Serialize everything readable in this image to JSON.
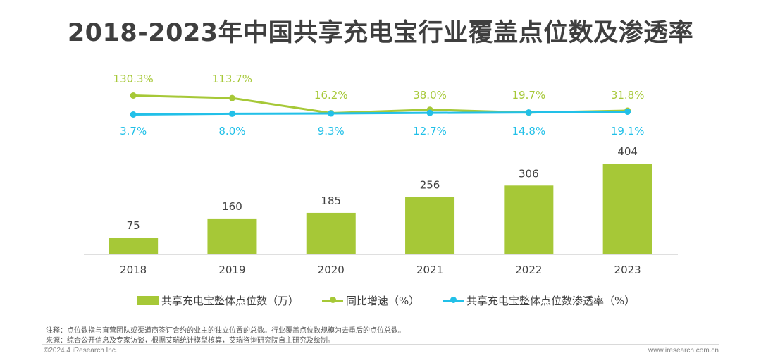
{
  "title": "2018-2023年中国共享充电宝行业覆盖点位数及渗透率",
  "colors": {
    "bar": "#a6c837",
    "growth_line": "#a6c837",
    "penetration_line": "#22c0e8",
    "axis": "#bfbfbf"
  },
  "chart_data": {
    "type": "bar",
    "categories": [
      "2018",
      "2019",
      "2020",
      "2021",
      "2022",
      "2023"
    ],
    "series": [
      {
        "name": "共享充电宝整体点位数（万）",
        "type": "bar",
        "values": [
          75,
          160,
          185,
          256,
          306,
          404
        ],
        "labels": [
          "75",
          "160",
          "185",
          "256",
          "306",
          "404"
        ]
      },
      {
        "name": "同比增速（%）",
        "type": "line",
        "values": [
          130.3,
          113.7,
          16.2,
          38.0,
          19.7,
          31.8
        ],
        "labels": [
          "130.3%",
          "113.7%",
          "16.2%",
          "38.0%",
          "19.7%",
          "31.8%"
        ]
      },
      {
        "name": "共享充电宝整体点位数渗透率（%）",
        "type": "line",
        "values": [
          3.7,
          8.0,
          9.3,
          12.7,
          14.8,
          19.1
        ],
        "labels": [
          "3.7%",
          "8.0%",
          "9.3%",
          "12.7%",
          "14.8%",
          "19.1%"
        ]
      }
    ],
    "legend_position": "bottom",
    "grid": false
  },
  "footer": {
    "note": "注释：点位数指与直营团队或渠道商签订合约的业主的独立位置的总数。行业覆盖点位数规模为去重后的点位总数。",
    "source": "来源：综合公开信息及专家访谈，根据艾瑞统计模型核算，艾瑞咨询研究院自主研究及绘制。",
    "copyright": "©2024.4 iResearch Inc.",
    "website": "www.iresearch.com.cn"
  }
}
